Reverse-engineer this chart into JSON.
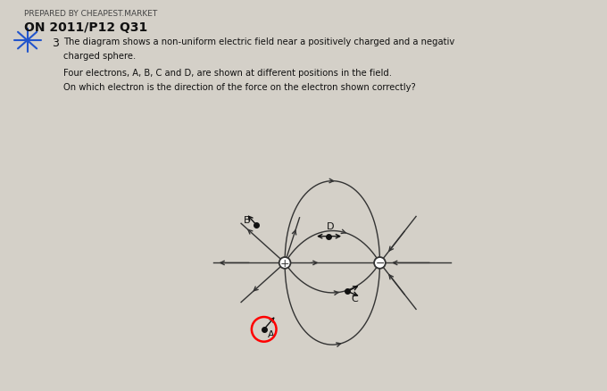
{
  "bg_color": "#d4d0c8",
  "header_text": "PREPARED BY CHEAPEST.MARKET",
  "sub_header": "ON 2011/P12 Q31",
  "question_num": "3",
  "line1": "The diagram shows a non-uniform electric field near a positively charged and a negativ",
  "line2": "charged sphere.",
  "line3": "Four electrons, A, B, C and D, are shown at different positions in the field.",
  "line4": "On which electron is the direction of the force on the electron shown correctly?",
  "text_color": "#111111",
  "line_color": "#333333",
  "pc": [
    -0.28,
    0.0
  ],
  "nc": [
    0.72,
    0.0
  ]
}
